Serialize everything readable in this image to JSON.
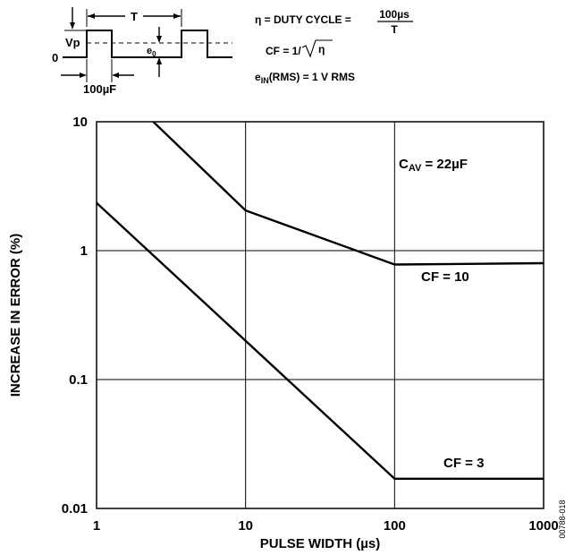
{
  "inset": {
    "labels": {
      "period": "T",
      "peak": "Vp",
      "zero": "0",
      "e0_main": "e",
      "e0_sub": "0",
      "pulse": "100µF"
    },
    "formulas": {
      "duty_prefix": "η = DUTY CYCLE =",
      "duty_num": "100µs",
      "duty_den": "T",
      "cf_prefix": "CF = 1/",
      "cf_radicand": "η",
      "ein_main": "e",
      "ein_sub": "IN",
      "ein_rest": "(RMS) = 1 V RMS"
    }
  },
  "chart_data": {
    "type": "line",
    "xscale": "log",
    "yscale": "log",
    "xlim": [
      1,
      1000
    ],
    "ylim": [
      0.01,
      10
    ],
    "grid": true,
    "xlabel": "PULSE WIDTH (µs)",
    "ylabel": "INCREASE IN ERROR (%)",
    "xticks": [
      1,
      10,
      100,
      1000
    ],
    "xtick_labels": [
      "1",
      "10",
      "100",
      "1000"
    ],
    "yticks": [
      0.01,
      0.1,
      1,
      10
    ],
    "ytick_labels": [
      "0.01",
      "0.1",
      "1",
      "10"
    ],
    "annotation": {
      "main": "C",
      "sub": "AV",
      "rest": " = 22µF"
    },
    "series": [
      {
        "name": "CF = 10",
        "x": [
          2.4,
          10,
          100,
          1000
        ],
        "y": [
          10,
          2.05,
          0.78,
          0.8
        ]
      },
      {
        "name": "CF = 3",
        "x": [
          1,
          10,
          100,
          1000
        ],
        "y": [
          2.35,
          0.2,
          0.017,
          0.017
        ]
      }
    ]
  },
  "figure_code": "00788-018"
}
